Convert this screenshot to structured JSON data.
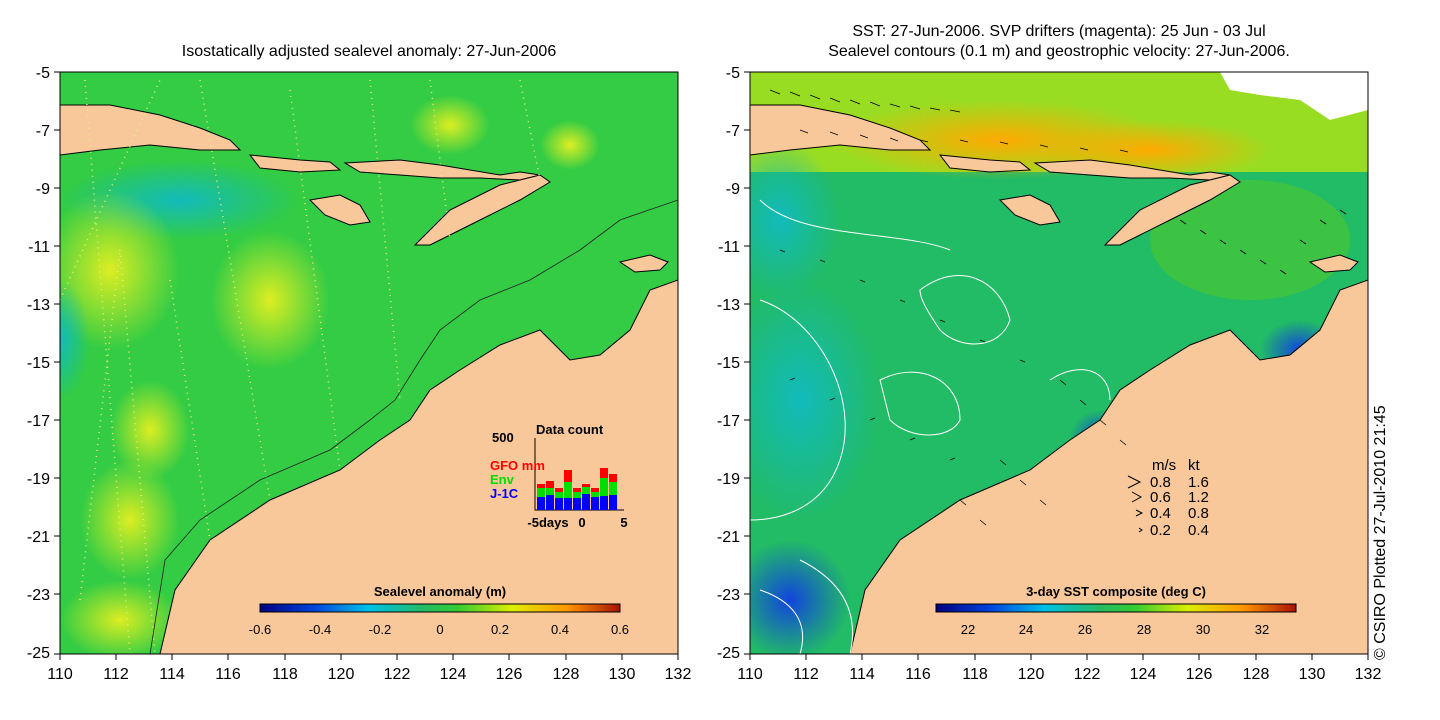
{
  "left_panel": {
    "title": "Isostatically adjusted sealevel anomaly: 27-Jun-2006",
    "colorbar_label": "Sealevel anomaly (m)",
    "colorbar_ticks": [
      "-0.6",
      "-0.4",
      "-0.2",
      "0",
      "0.2",
      "0.4",
      "0.6"
    ],
    "data_count": {
      "title": "Data count",
      "ymax_label": "500",
      "series": [
        {
          "name": "GFO mm",
          "color": "#ff0000"
        },
        {
          "name": "Env",
          "color": "#00dd00"
        },
        {
          "name": "J-1C",
          "color": "#0000ff"
        }
      ],
      "x_ticks": [
        "-5days",
        "0",
        "5"
      ]
    }
  },
  "right_panel": {
    "title_line1": "SST: 27-Jun-2006. SVP drifters (magenta): 25 Jun - 03 Jul",
    "title_line2": "Sealevel contours (0.1 m) and geostrophic velocity: 27-Jun-2006.",
    "colorbar_label": "3-day SST composite (deg C)",
    "colorbar_ticks": [
      "22",
      "24",
      "26",
      "28",
      "30",
      "32"
    ],
    "velocity_legend": {
      "header_ms": "m/s",
      "header_kt": "kt",
      "rows": [
        {
          "ms": "0.8",
          "kt": "1.6"
        },
        {
          "ms": "0.6",
          "kt": "1.2"
        },
        {
          "ms": "0.4",
          "kt": "0.8"
        },
        {
          "ms": "0.2",
          "kt": "0.4"
        }
      ]
    }
  },
  "axes": {
    "y_ticks": [
      "-5",
      "-7",
      "-9",
      "-11",
      "-13",
      "-15",
      "-17",
      "-19",
      "-21",
      "-23",
      "-25"
    ],
    "x_ticks": [
      "110",
      "112",
      "114",
      "116",
      "118",
      "120",
      "122",
      "124",
      "126",
      "128",
      "130",
      "132"
    ]
  },
  "credit": "© CSIRO Plotted 27-Jul-2010 21:45",
  "colors": {
    "land": "#f8c89a",
    "sea_green": "#22bb44",
    "sst_high": "#ee8800",
    "sst_low": "#0000aa"
  }
}
